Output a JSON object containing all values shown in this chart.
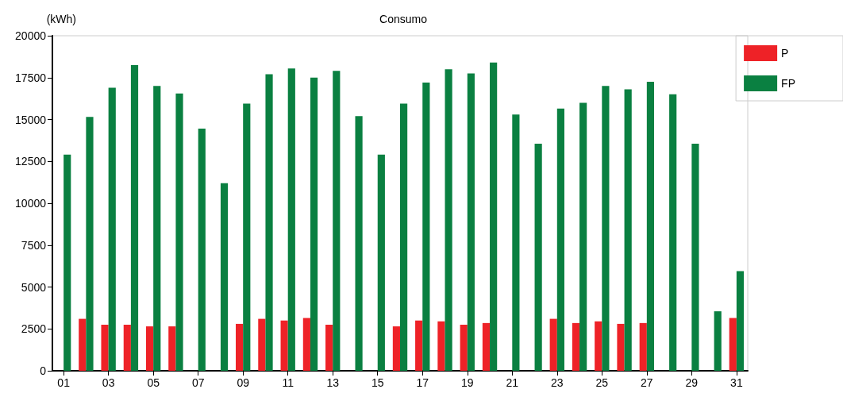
{
  "chart_data": {
    "type": "bar",
    "title": "Consumo",
    "ylabel": "(kWh)",
    "categories": [
      "01",
      null,
      "03",
      null,
      "05",
      null,
      "07",
      null,
      "09",
      null,
      "11",
      null,
      "13",
      null,
      "15",
      null,
      "17",
      null,
      "19",
      null,
      "21",
      null,
      "23",
      null,
      "25",
      null,
      "27",
      null,
      "29",
      null,
      "31"
    ],
    "series": [
      {
        "name": "P",
        "color": "#ee2227",
        "values": [
          null,
          3100,
          2750,
          2750,
          2650,
          2650,
          null,
          null,
          2800,
          3100,
          3000,
          3150,
          2750,
          null,
          null,
          2650,
          3000,
          2950,
          2750,
          2850,
          null,
          null,
          3100,
          2850,
          2950,
          2800,
          2850,
          null,
          null,
          null,
          3150
        ]
      },
      {
        "name": "FP",
        "color": "#0a8041",
        "values": [
          12900,
          15150,
          16900,
          18250,
          17000,
          16550,
          14450,
          11200,
          15950,
          17700,
          18050,
          17500,
          17900,
          15200,
          12900,
          15950,
          17200,
          18000,
          17750,
          18400,
          15300,
          13550,
          15650,
          16000,
          17000,
          16800,
          17250,
          16500,
          13550,
          3550,
          5950
        ]
      }
    ],
    "ylim": [
      0,
      20000
    ],
    "yticks": [
      0,
      2500,
      5000,
      7500,
      10000,
      12500,
      15000,
      17500,
      20000
    ],
    "grid": false,
    "legend": "top right"
  }
}
